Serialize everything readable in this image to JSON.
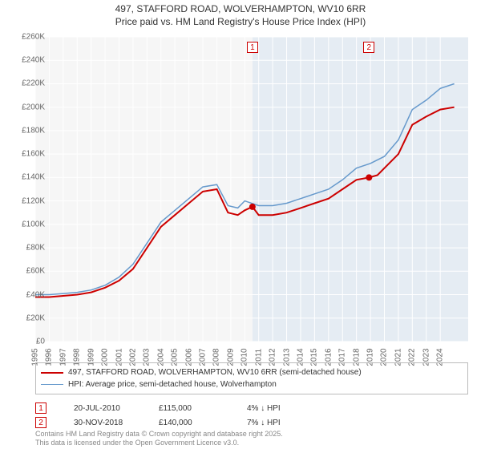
{
  "title": {
    "line1": "497, STAFFORD ROAD, WOLVERHAMPTON, WV10 6RR",
    "line2": "Price paid vs. HM Land Registry's House Price Index (HPI)"
  },
  "chart": {
    "type": "line",
    "background_color": "#f6f6f6",
    "shade_color": "#e5ecf3",
    "grid_color": "#e0e0e0",
    "xlim": [
      1995,
      2026
    ],
    "ylim": [
      0,
      260000
    ],
    "y_ticks": [
      0,
      20000,
      40000,
      60000,
      80000,
      100000,
      120000,
      140000,
      160000,
      180000,
      200000,
      220000,
      240000,
      260000
    ],
    "y_tick_labels": [
      "£0",
      "£20K",
      "£40K",
      "£60K",
      "£80K",
      "£100K",
      "£120K",
      "£140K",
      "£160K",
      "£180K",
      "£200K",
      "£220K",
      "£240K",
      "£260K"
    ],
    "x_ticks": [
      1995,
      1996,
      1997,
      1998,
      1999,
      2000,
      2001,
      2002,
      2003,
      2004,
      2005,
      2006,
      2007,
      2008,
      2009,
      2010,
      2011,
      2012,
      2013,
      2014,
      2015,
      2016,
      2017,
      2018,
      2019,
      2020,
      2021,
      2022,
      2023,
      2024
    ],
    "series": [
      {
        "name": "price_paid",
        "label": "497, STAFFORD ROAD, WOLVERHAMPTON, WV10 6RR (semi-detached house)",
        "color": "#cc0000",
        "line_width": 2,
        "x": [
          1995,
          1996,
          1997,
          1998,
          1999,
          2000,
          2001,
          2002,
          2003,
          2004,
          2005,
          2006,
          2007,
          2008,
          2008.8,
          2009.5,
          2010,
          2010.55,
          2011,
          2012,
          2013,
          2014,
          2015,
          2016,
          2017,
          2018,
          2018.9,
          2019.5,
          2020,
          2021,
          2022,
          2023,
          2024,
          2025
        ],
        "y": [
          38000,
          38000,
          39000,
          40000,
          42000,
          46000,
          52000,
          62000,
          80000,
          98000,
          108000,
          118000,
          128000,
          130000,
          110000,
          108000,
          112000,
          115000,
          108000,
          108000,
          110000,
          114000,
          118000,
          122000,
          130000,
          138000,
          140000,
          142000,
          148000,
          160000,
          185000,
          192000,
          198000,
          200000
        ]
      },
      {
        "name": "hpi",
        "label": "HPI: Average price, semi-detached house, Wolverhampton",
        "color": "#6699cc",
        "line_width": 1.5,
        "x": [
          1995,
          1996,
          1997,
          1998,
          1999,
          2000,
          2001,
          2002,
          2003,
          2004,
          2005,
          2006,
          2007,
          2008,
          2008.8,
          2009.5,
          2010,
          2011,
          2012,
          2013,
          2014,
          2015,
          2016,
          2017,
          2018,
          2019,
          2020,
          2021,
          2022,
          2023,
          2024,
          2025
        ],
        "y": [
          40000,
          40000,
          41000,
          42000,
          44000,
          48000,
          55000,
          66000,
          84000,
          102000,
          112000,
          122000,
          132000,
          134000,
          116000,
          114000,
          120000,
          116000,
          116000,
          118000,
          122000,
          126000,
          130000,
          138000,
          148000,
          152000,
          158000,
          172000,
          198000,
          206000,
          216000,
          220000
        ]
      }
    ],
    "sale_markers": [
      {
        "n": "1",
        "x": 2010.55,
        "y": 115000,
        "color": "#cc0000",
        "shade_start": 2010.55,
        "shade_end": 2018.9
      },
      {
        "n": "2",
        "x": 2018.9,
        "y": 140000,
        "color": "#cc0000",
        "shade_start": 2018.9,
        "shade_end": 2026
      }
    ],
    "marker_labels": [
      {
        "n": "1",
        "x": 2010.55,
        "color": "#cc0000"
      },
      {
        "n": "2",
        "x": 2018.9,
        "color": "#cc0000"
      }
    ],
    "title_fontsize": 12,
    "label_fontsize": 10
  },
  "legend": {
    "items": [
      {
        "color": "#cc0000",
        "width": 2,
        "label": "497, STAFFORD ROAD, WOLVERHAMPTON, WV10 6RR (semi-detached house)"
      },
      {
        "color": "#6699cc",
        "width": 1.5,
        "label": "HPI: Average price, semi-detached house, Wolverhampton"
      }
    ]
  },
  "sales": [
    {
      "n": "1",
      "color": "#cc0000",
      "date": "20-JUL-2010",
      "price": "£115,000",
      "diff": "4% ↓ HPI"
    },
    {
      "n": "2",
      "color": "#cc0000",
      "date": "30-NOV-2018",
      "price": "£140,000",
      "diff": "7% ↓ HPI"
    }
  ],
  "footer": {
    "line1": "Contains HM Land Registry data © Crown copyright and database right 2025.",
    "line2": "This data is licensed under the Open Government Licence v3.0."
  }
}
